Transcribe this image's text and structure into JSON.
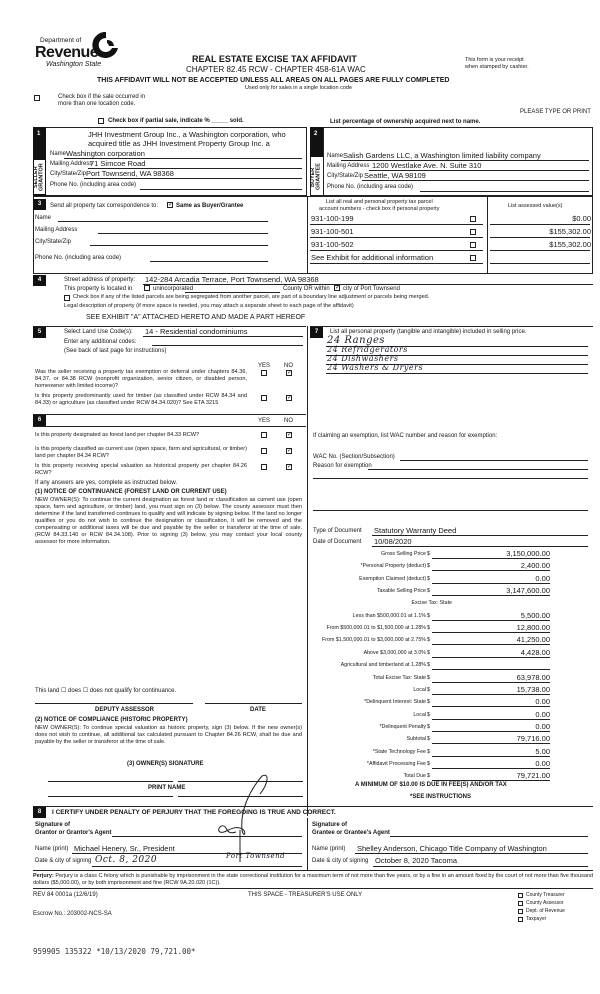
{
  "header": {
    "logo": {
      "line1": "Department of",
      "line2": "Revenue",
      "line3": "Washington State"
    },
    "title": "REAL ESTATE EXCISE TAX AFFIDAVIT",
    "chapter": "CHAPTER 82.45 RCW - CHAPTER 458-61A WAC",
    "warning": "THIS AFFIDAVIT WILL NOT BE ACCEPTED UNLESS ALL AREAS ON ALL PAGES ARE FULLY COMPLETED",
    "used_only": "Used only for sales in a single location code",
    "receipt_1": "This form is your receipt",
    "receipt_2": "when stamped by cashier.",
    "multi_location_1": "Check box if the sale occurred in",
    "multi_location_2": "more than one location code.",
    "type_or_print": "PLEASE TYPE OR PRINT",
    "partial_sale": "Check box if partial sale, indicate % _____ sold.",
    "list_percentage": "List percentage of ownership acquired next to name."
  },
  "seller": {
    "num": "1",
    "side_label": "SELLER GRANTOR",
    "name_line1": "JHH Investment Group Inc., a Washington corporation, who",
    "name_line2": "acquired title as JHH Investment Property Group Inc. a",
    "name_label": "Name",
    "name": "Washington corporation",
    "address_label": "Mailing Address",
    "address": "71 Simcoe Road",
    "city_label": "City/State/Zip",
    "city": "Port Townsend, WA 98368",
    "phone_label": "Phone No. (including area code)"
  },
  "buyer": {
    "num": "2",
    "side_label": "BUYER GRANTEE",
    "name_label": "Name",
    "name": "Salish Gardens LLC, a Washington limited liability company",
    "address_label": "Mailing Address",
    "address": "1200 Westlake Ave. N. Suite 310",
    "city_label": "City/State/Zip",
    "city": "Seattle, WA 98109",
    "phone_label": "Phone No. (including area code)"
  },
  "section3": {
    "num": "3",
    "send_label": "Send all property tax correspondence to:",
    "same_as_buyer": "Same as Buyer/Grantee",
    "same_checked": true,
    "name_label": "Name",
    "address_label": "Mailing Address",
    "city_label": "City/State/Zip",
    "phone_label": "Phone No. (including area code)",
    "parcel_header_1": "List all real and personal property tax parcel",
    "parcel_header_2": "account numbers - check box if personal property",
    "value_header": "List assessed value(s)",
    "parcels": [
      {
        "number": "931-100-199",
        "value": "$0.00"
      },
      {
        "number": "931-100-501",
        "value": "$155,302.00"
      },
      {
        "number": "931-100-502",
        "value": "$155,302.00"
      }
    ],
    "see_exhibit": "See Exhibit for additional information"
  },
  "section4": {
    "num": "4",
    "street_label": "Street address of property:",
    "street": "142-284 Arcadia Terrace, Port Townsend, WA 98368",
    "located_in": "This property is located in",
    "unincorporated": "unincorporated",
    "county_or_within": "County OR within",
    "city_of": "city of Port Townsend",
    "segregated": "Check box if any of the listed parcels are being segregated from another parcel, are part of a boundary line adjustment or parcels being merged.",
    "legal_label": "Legal description of property (if more space is needed, you may attach a separate sheet to each page of the affidavit)",
    "legal": "SEE EXHIBIT \"A\" ATTACHED HERETO AND MADE A PART HEREOF"
  },
  "section5": {
    "num": "5",
    "land_use_label": "Select Land Use Code(s):",
    "land_use": "14 - Residential condominiums",
    "additional": "Enter any additional codes:",
    "see_back": "(See back of last page for instructions)",
    "yes": "YES",
    "no": "NO",
    "q1": "Was the seller receiving a property tax exemption or deferral under chapters 84.36, 84.37, or 84.38 RCW (nonprofit organization, senior citizen, or disabled person, homeowner with limited income)?",
    "q2": "Is this property predominantly used for timber (as classified under RCW 84.34 and 84.33) or agriculture (as classified under RCW 84.34.020)? See ETA 3215"
  },
  "section6": {
    "num": "6",
    "yes": "YES",
    "no": "NO",
    "q1": "Is this property designated as forest land per chapter 84.33 RCW?",
    "q2": "Is this property classified as current use (open space, farm and agricultural, or timber) land per chapter 84.34 RCW?",
    "q3": "Is this property receiving special valuation as historical property per chapter 84.26 RCW?",
    "if_yes": "If any answers are yes, complete as instructed below.",
    "notice1_title": "(1) NOTICE OF CONTINUANCE (FOREST LAND OR CURRENT USE)",
    "notice1_text": "NEW OWNER(S): To continue the current designation as forest land or classification as current use (open space, farm and agriculture, or timber) land, you must sign on (3) below. The county assessor must then determine if the land transferred continues to qualify and will indicate by signing below. If the land no longer qualifies or you do not wish to continue the designation or classification, it will be removed and the compensating or additional taxes will be due and payable by the seller or transferor at the time of sale. (RCW 84.33.140 or RCW 84.34.108). Prior to signing (3) below, you may contact your local county assessor for more information.",
    "qualify": "This land ☐ does ☐ does not qualify for continuance.",
    "deputy": "DEPUTY ASSESSOR",
    "date": "DATE",
    "notice2_title": "(2) NOTICE OF COMPLIANCE (HISTORIC PROPERTY)",
    "notice2_text": "NEW OWNER(S): To continue special valuation as historic property, sign (3) below. If the new owner(s) does not wish to continue, all additional tax calculated pursuant to Chapter 84.26 RCW, shall be due and payable by the seller or transferor at the time of sale.",
    "owner_sig": "(3) OWNER(S) SIGNATURE",
    "print_name": "PRINT NAME"
  },
  "section7": {
    "num": "7",
    "label": "List all personal property (tangible and intangible) included in selling price.",
    "items": [
      "24 Ranges",
      "24 Refridgerators",
      "24 Dishwashers",
      "24 Washers & Dryers"
    ],
    "exemption_label": "If claiming an exemption, list WAC number and reason for exemption:",
    "wac_label": "WAC No. (Section/Subsection)",
    "reason_label": "Reason for exemption"
  },
  "document": {
    "type_label": "Type of Document",
    "type": "Statutory Warranty Deed",
    "date_label": "Date of Document",
    "date": "10/08/2020"
  },
  "tax_rows": [
    {
      "label": "Gross Selling Price",
      "value": "3,150,000.00",
      "dollar": true
    },
    {
      "label": "*Personal Property (deduct)",
      "value": "2,400.00",
      "dollar": true
    },
    {
      "label": "Exemption Claimed (deduct)",
      "value": "0.00",
      "dollar": true
    },
    {
      "label": "Taxable Selling Price",
      "value": "3,147,600.00",
      "dollar": true
    },
    {
      "label": "Excise Tax:  State",
      "value": "",
      "dollar": false
    },
    {
      "label": "Less than $500,000.01 at 1.1%",
      "value": "5,500.00",
      "dollar": true
    },
    {
      "label": "From $500,000.01 to $1,500,000 at 1.28%",
      "value": "12,800.00",
      "dollar": true
    },
    {
      "label": "From $1,500,000.01 to $3,000,000 at 2.75%",
      "value": "41,250.00",
      "dollar": true
    },
    {
      "label": "Above $3,000,000 at 3.0%",
      "value": "4,428.00",
      "dollar": true
    },
    {
      "label": "Agricultural and timberland at 1.28%",
      "value": "",
      "dollar": true
    },
    {
      "label": "Total Excise Tax: State",
      "value": "63,978.00",
      "dollar": true
    },
    {
      "label": "Local",
      "value": "15,738.00",
      "dollar": true
    },
    {
      "label": "*Delinquent Interest:  State",
      "value": "0.00",
      "dollar": true
    },
    {
      "label": "Local",
      "value": "0.00",
      "dollar": true
    },
    {
      "label": "*Delinquent Penalty",
      "value": "0.00",
      "dollar": true
    },
    {
      "label": "Subtotal",
      "value": "79,716.00",
      "dollar": true
    },
    {
      "label": "*State Technology Fee",
      "value": "5.00",
      "dollar": true
    },
    {
      "label": "*Affidavit Processing Fee",
      "value": "0.00",
      "dollar": true
    },
    {
      "label": "Total Due",
      "value": "79,721.00",
      "dollar": true
    }
  ],
  "minimum": "A MINIMUM OF $10.00 IS DUE IN FEE(S) AND/OR TAX",
  "see_instructions": "*SEE INSTRUCTIONS",
  "section8": {
    "num": "8",
    "certify": "I CERTIFY UNDER PENALTY OF PERJURY THAT THE FOREGOING IS TRUE AND CORRECT.",
    "sig_grantor_1": "Signature of",
    "sig_grantor_2": "Grantor or Grantor's Agent",
    "sig_grantee_1": "Signature of",
    "sig_grantee_2": "Grantee or Grantee's Agent",
    "name_label": "Name (print)",
    "grantor_name": "Michael Henery, Sr., President",
    "grantee_name": "Shelley Anderson, Chicago Title Company of Washington",
    "date_label": "Date & city of signing",
    "grantor_date": "Oct. 8, 2020",
    "grantor_city": "Port Townsend",
    "grantee_date": "October 8, 2020 Tacoma"
  },
  "perjury_label": "Perjury:",
  "perjury": "Perjury is a class C felony which is punishable by imprisonment in the state correctional institution for a maximum term of not more than five years, or by a fine in an amount fixed by the court of not more than five thousand dollars ($5,000.00), or by both imprisonment and fine (RCW 9A.20.020 (1C)).",
  "footer": {
    "rev": "REV 84 0001a (12/6/19)",
    "treasurer": "THIS SPACE - TREASURER'S USE ONLY",
    "escrow": "Escrow No.:  203002-NCS-SA",
    "copies": [
      "County Treasurer",
      "County Assessor",
      "Dept. of Revenue",
      "Taxpayer"
    ]
  },
  "stamp": "959905 135322 *10/13/2020 79,721.00*"
}
